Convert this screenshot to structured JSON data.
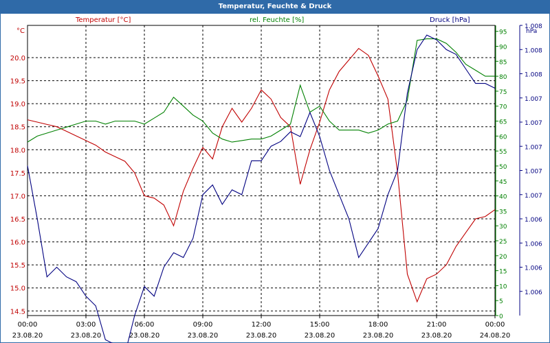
{
  "window": {
    "title": "Temperatur, Feuchte & Druck"
  },
  "chart_data": {
    "type": "line",
    "title": "Temperatur, Feuchte & Druck",
    "grid": true,
    "x_ticks": [
      {
        "time": "00:00",
        "date": "23.08.20"
      },
      {
        "time": "03:00",
        "date": "23.08.20"
      },
      {
        "time": "06:00",
        "date": "23.08.20"
      },
      {
        "time": "09:00",
        "date": "23.08.20"
      },
      {
        "time": "12:00",
        "date": "23.08.20"
      },
      {
        "time": "15:00",
        "date": "23.08.20"
      },
      {
        "time": "18:00",
        "date": "23.08.20"
      },
      {
        "time": "21:00",
        "date": "23.08.20"
      },
      {
        "time": "00:00",
        "date": "24.08.20"
      }
    ],
    "xlim_hours": [
      0,
      24
    ],
    "axes": {
      "temperature": {
        "label": "Temperatur [°C]",
        "unit": "°C",
        "color": "#c00000",
        "ylim": [
          14.4,
          20.7
        ],
        "ticks": [
          "14.5",
          "15.0",
          "15.5",
          "16.0",
          "16.5",
          "17.0",
          "17.5",
          "18.0",
          "18.5",
          "19.0",
          "19.5",
          "20.0"
        ],
        "tick_values": [
          14.5,
          15.0,
          15.5,
          16.0,
          16.5,
          17.0,
          17.5,
          18.0,
          18.5,
          19.0,
          19.5,
          20.0
        ]
      },
      "humidity": {
        "label": "rel. Feuchte [%]",
        "unit": "%",
        "color": "#008000",
        "ylim": [
          0,
          97
        ],
        "ticks": [
          "0",
          "5",
          "10",
          "15",
          "20",
          "25",
          "30",
          "35",
          "40",
          "45",
          "50",
          "55",
          "60",
          "65",
          "70",
          "75",
          "80",
          "85",
          "90",
          "95"
        ],
        "tick_values": [
          0,
          5,
          10,
          15,
          20,
          25,
          30,
          35,
          40,
          45,
          50,
          55,
          60,
          65,
          70,
          75,
          80,
          85,
          90,
          95
        ]
      },
      "pressure": {
        "label": "Druck [hPa]",
        "unit": "hPa",
        "color": "#000080",
        "ylim": [
          1005.6,
          1008.6
        ],
        "ticks": [
          "1.006",
          "1.006",
          "1.006",
          "1.006",
          "1.007",
          "1.007",
          "1.007",
          "1.007",
          "1.007",
          "1.008",
          "1.008",
          "1.008",
          "1.008"
        ],
        "tick_values": [
          1005.85,
          1006.1,
          1006.35,
          1006.6,
          1006.85,
          1007.1,
          1007.35,
          1007.6,
          1007.85,
          1008.1,
          1008.35,
          1008.6,
          1008.85
        ]
      }
    },
    "series": [
      {
        "name": "Temperatur [°C]",
        "axis": "temperature",
        "color": "#c00000",
        "x": [
          0,
          0.5,
          1,
          1.5,
          2,
          2.5,
          3,
          3.5,
          4,
          4.5,
          5,
          5.5,
          6,
          6.5,
          7,
          7.5,
          8,
          8.5,
          9,
          9.5,
          10,
          10.5,
          11,
          11.5,
          12,
          12.5,
          13,
          13.5,
          14,
          14.5,
          15,
          15.5,
          16,
          16.5,
          17,
          17.5,
          18,
          18.5,
          19,
          19.5,
          20,
          20.5,
          21,
          21.5,
          22,
          22.5,
          23,
          23.5,
          24
        ],
        "values": [
          18.65,
          18.6,
          18.55,
          18.5,
          18.4,
          18.3,
          18.2,
          18.1,
          17.95,
          17.85,
          17.75,
          17.5,
          17.0,
          16.95,
          16.8,
          16.35,
          17.1,
          17.6,
          18.05,
          17.8,
          18.5,
          18.9,
          18.6,
          18.9,
          19.3,
          19.1,
          18.7,
          18.5,
          17.25,
          18.0,
          18.6,
          19.3,
          19.7,
          19.95,
          20.2,
          20.05,
          19.6,
          19.1,
          17.5,
          15.3,
          14.7,
          15.2,
          15.3,
          15.5,
          15.9,
          16.2,
          16.5,
          16.55,
          16.7
        ]
      },
      {
        "name": "rel. Feuchte [%]",
        "axis": "humidity",
        "color": "#008000",
        "x": [
          0,
          0.5,
          1,
          1.5,
          2,
          2.5,
          3,
          3.5,
          4,
          4.5,
          5,
          5.5,
          6,
          6.5,
          7,
          7.5,
          8,
          8.5,
          9,
          9.5,
          10,
          10.5,
          11,
          11.5,
          12,
          12.5,
          13,
          13.5,
          14,
          14.5,
          15,
          15.5,
          16,
          16.5,
          17,
          17.5,
          18,
          18.5,
          19,
          19.5,
          20,
          20.5,
          21,
          21.5,
          22,
          22.5,
          23,
          23.5,
          24
        ],
        "values": [
          58,
          60,
          61,
          62,
          63,
          64,
          65,
          65,
          64,
          65,
          65,
          65,
          64,
          66,
          68,
          73,
          70,
          67,
          65,
          61,
          59,
          58,
          58.5,
          59,
          59,
          60,
          62,
          64,
          77,
          68,
          70,
          65,
          62,
          62,
          62,
          61,
          62,
          64,
          65,
          72,
          92,
          92.5,
          92.5,
          91,
          88,
          84,
          82,
          80,
          80
        ]
      },
      {
        "name": "Druck [hPa]",
        "axis": "pressure",
        "color": "#000080",
        "x": [
          0,
          0.5,
          1,
          1.5,
          2,
          2.5,
          3,
          3.5,
          4,
          4.5,
          5,
          5.5,
          6,
          6.5,
          7,
          7.5,
          8,
          8.5,
          9,
          9.5,
          10,
          10.5,
          11,
          11.5,
          12,
          12.5,
          13,
          13.5,
          14,
          14.5,
          15,
          15.5,
          16,
          16.5,
          17,
          17.5,
          18,
          18.5,
          19,
          19.5,
          20,
          20.5,
          21,
          21.5,
          22,
          22.5,
          23,
          23.5,
          24
        ],
        "values": [
          1007.15,
          1006.6,
          1006.0,
          1006.1,
          1006.0,
          1005.95,
          1005.8,
          1005.7,
          1005.35,
          1005.3,
          1005.2,
          1005.6,
          1005.9,
          1005.8,
          1006.1,
          1006.25,
          1006.2,
          1006.4,
          1006.85,
          1006.95,
          1006.75,
          1006.9,
          1006.85,
          1007.2,
          1007.2,
          1007.35,
          1007.4,
          1007.5,
          1007.45,
          1007.7,
          1007.45,
          1007.1,
          1006.85,
          1006.6,
          1006.2,
          1006.35,
          1006.5,
          1006.85,
          1007.1,
          1007.9,
          1008.35,
          1008.5,
          1008.45,
          1008.35,
          1008.3,
          1008.15,
          1008.0,
          1008.0,
          1007.95
        ]
      }
    ]
  }
}
